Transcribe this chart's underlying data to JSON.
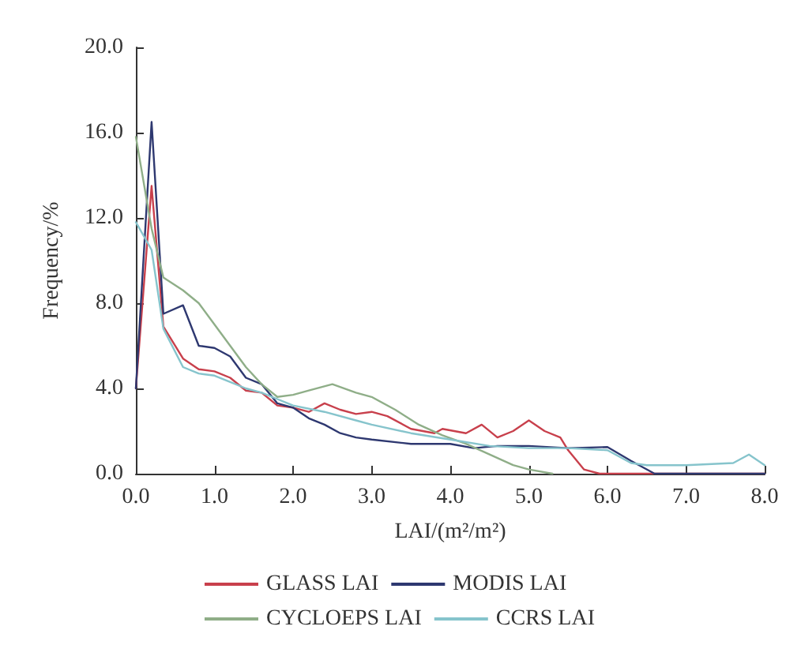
{
  "chart_data": {
    "type": "line",
    "xlabel": "LAI/(m²/m²)",
    "ylabel": "Frequency/%",
    "xlim": [
      0,
      8
    ],
    "ylim": [
      0,
      20
    ],
    "xticks": [
      {
        "value": 0,
        "label": "0.0"
      },
      {
        "value": 1,
        "label": "1.0"
      },
      {
        "value": 2,
        "label": "2.0"
      },
      {
        "value": 3,
        "label": "3.0"
      },
      {
        "value": 4,
        "label": "4.0"
      },
      {
        "value": 5,
        "label": "5.0"
      },
      {
        "value": 6,
        "label": "6.0"
      },
      {
        "value": 7,
        "label": "7.0"
      },
      {
        "value": 8,
        "label": "8.0"
      }
    ],
    "yticks": [
      {
        "value": 0,
        "label": "0.0"
      },
      {
        "value": 4,
        "label": "4.0"
      },
      {
        "value": 8,
        "label": "8.0"
      },
      {
        "value": 12,
        "label": "12.0"
      },
      {
        "value": 16,
        "label": "16.0"
      },
      {
        "value": 20,
        "label": "20.0"
      }
    ],
    "grid": false,
    "legend": "bottom",
    "marker": "none",
    "line_style": "solid",
    "series": [
      {
        "name": "GLASS LAI",
        "color": "#c8404c",
        "x": [
          0,
          0.2,
          0.35,
          0.6,
          0.8,
          1.0,
          1.2,
          1.4,
          1.6,
          1.8,
          2.0,
          2.2,
          2.4,
          2.6,
          2.8,
          3.0,
          3.2,
          3.5,
          3.8,
          3.9,
          4.2,
          4.4,
          4.6,
          4.8,
          5.0,
          5.2,
          5.4,
          5.5,
          5.7,
          5.9,
          8.0
        ],
        "values": [
          4.0,
          13.5,
          6.9,
          5.4,
          4.9,
          4.8,
          4.5,
          3.9,
          3.8,
          3.2,
          3.1,
          2.9,
          3.3,
          3.0,
          2.8,
          2.9,
          2.7,
          2.1,
          1.9,
          2.1,
          1.9,
          2.3,
          1.7,
          2.0,
          2.5,
          2.0,
          1.7,
          1.1,
          0.2,
          0,
          0
        ]
      },
      {
        "name": "MODIS LAI",
        "color": "#2e3870",
        "x": [
          0,
          0.2,
          0.35,
          0.6,
          0.8,
          1.0,
          1.2,
          1.4,
          1.6,
          1.8,
          2.0,
          2.2,
          2.4,
          2.6,
          2.8,
          3.0,
          3.5,
          4.0,
          4.3,
          4.6,
          5.0,
          5.5,
          6.0,
          6.3,
          6.6,
          8.0
        ],
        "values": [
          4.0,
          16.5,
          7.5,
          7.9,
          6.0,
          5.9,
          5.5,
          4.5,
          4.2,
          3.3,
          3.1,
          2.6,
          2.3,
          1.9,
          1.7,
          1.6,
          1.4,
          1.4,
          1.2,
          1.3,
          1.3,
          1.2,
          1.25,
          0.6,
          0,
          0
        ]
      },
      {
        "name": "CYCLOEPS LAI",
        "color": "#8fae88",
        "x": [
          0,
          0.2,
          0.35,
          0.6,
          0.8,
          1.0,
          1.2,
          1.4,
          1.6,
          1.8,
          2.0,
          2.2,
          2.5,
          2.8,
          3.0,
          3.3,
          3.6,
          3.9,
          4.2,
          4.5,
          4.8,
          5.0,
          5.3
        ],
        "values": [
          15.8,
          11.5,
          9.2,
          8.6,
          8.0,
          7.0,
          6.0,
          5.0,
          4.2,
          3.6,
          3.7,
          3.9,
          4.2,
          3.8,
          3.6,
          3.0,
          2.3,
          1.8,
          1.4,
          0.9,
          0.4,
          0.2,
          0
        ]
      },
      {
        "name": "CCRS LAI",
        "color": "#86c4cc",
        "x": [
          0,
          0.2,
          0.35,
          0.6,
          0.8,
          1.0,
          1.2,
          1.4,
          1.6,
          1.8,
          2.0,
          2.4,
          2.8,
          3.0,
          3.5,
          4.0,
          4.5,
          5.0,
          5.5,
          6.0,
          6.3,
          6.5,
          7.0,
          7.6,
          7.8,
          8.0
        ],
        "values": [
          11.8,
          10.5,
          6.8,
          5.0,
          4.7,
          4.6,
          4.3,
          4.0,
          3.8,
          3.5,
          3.2,
          2.9,
          2.5,
          2.3,
          1.9,
          1.6,
          1.3,
          1.2,
          1.2,
          1.1,
          0.5,
          0.4,
          0.4,
          0.5,
          0.9,
          0.4
        ]
      }
    ]
  }
}
